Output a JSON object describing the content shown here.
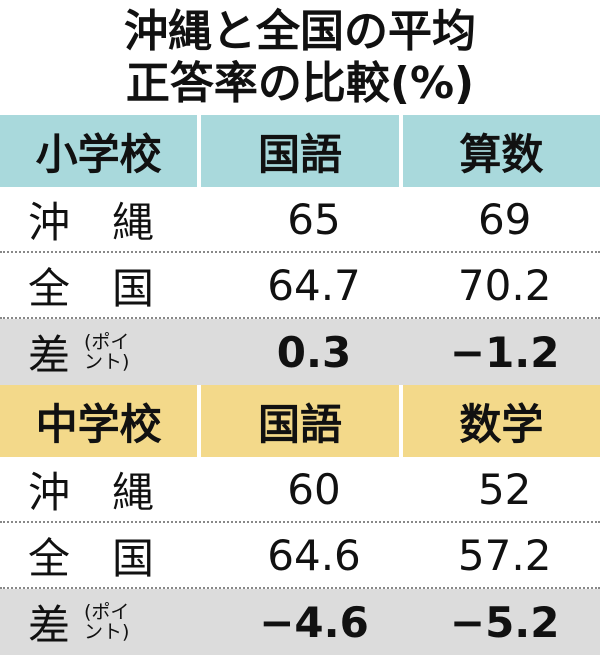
{
  "header": {
    "title_lines": [
      "沖縄と全国の平均",
      "正答率の比較(%)"
    ]
  },
  "sections": [
    {
      "header": [
        "小学校",
        "国語",
        "算数"
      ],
      "rows": [
        [
          "沖　縄",
          "65",
          "69"
        ],
        [
          "全　国",
          "64.7",
          "70.2"
        ]
      ],
      "diff": {
        "label": "差",
        "unit": "(ポイント)",
        "values": [
          "0.3",
          "−1.2"
        ]
      }
    },
    {
      "header": [
        "中学校",
        "国語",
        "数学"
      ],
      "rows": [
        [
          "沖　縄",
          "60",
          "52"
        ],
        [
          "全　国",
          "64.6",
          "57.2"
        ]
      ],
      "diff": {
        "label": "差",
        "unit": "(ポイント)",
        "values": [
          "−4.6",
          "−5.2"
        ]
      }
    }
  ]
}
